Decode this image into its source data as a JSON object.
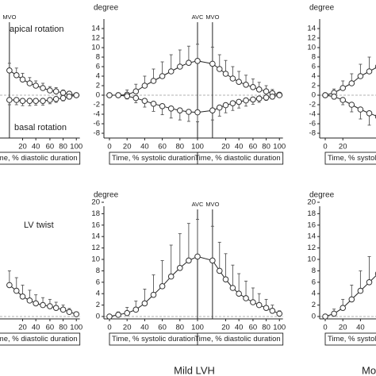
{
  "chart_data": [
    {
      "type": "line",
      "ylim": [
        -8,
        14
      ],
      "zero_line": true,
      "x": [
        117,
        125,
        132,
        140,
        147,
        155,
        163,
        170,
        178,
        185,
        193
      ],
      "xticks": [
        {
          "value": 132,
          "label": "20"
        },
        {
          "value": 147,
          "label": "40"
        },
        {
          "value": 163,
          "label": "60"
        },
        {
          "value": 178,
          "label": "80"
        },
        {
          "value": 193,
          "label": "100"
        }
      ],
      "xlabel_diastolic": "Time, % diastolic duration",
      "annotations": [
        {
          "text": "MVO",
          "x": 117
        }
      ],
      "texts": [
        "apical rotation",
        "basal rotation"
      ],
      "series": [
        {
          "error_side": "up",
          "values": [
            5.2,
            4.2,
            3.3,
            2.5,
            2,
            1.5,
            1,
            0.8,
            0.5,
            0.3,
            0
          ],
          "errors": [
            1.5,
            1.5,
            1.3,
            1.2,
            1,
            1,
            0.8,
            0.8,
            0.6,
            0.5,
            0.3
          ]
        },
        {
          "error_side": "down",
          "values": [
            -1,
            -1,
            -1.2,
            -1.2,
            -1.2,
            -1.2,
            -1,
            -0.8,
            -0.6,
            -0.3,
            0
          ],
          "errors": [
            1,
            1,
            1,
            1,
            0.9,
            0.9,
            0.8,
            0.7,
            0.6,
            0.5,
            0.3
          ]
        }
      ]
    },
    {
      "type": "line",
      "y_label": "degree",
      "ylim": [
        -8,
        14
      ],
      "yticks": [
        -8,
        -6,
        -4,
        -2,
        0,
        2,
        4,
        6,
        8,
        10,
        12,
        14
      ],
      "zero_line": true,
      "x": [
        0,
        10,
        20,
        30,
        40,
        50,
        60,
        70,
        80,
        90,
        100,
        117,
        125,
        132,
        140,
        147,
        155,
        163,
        170,
        178,
        185,
        193
      ],
      "xticks": [
        0,
        20,
        40,
        60,
        80,
        100,
        {
          "value": 132,
          "label": "20"
        },
        {
          "value": 147,
          "label": "40"
        },
        {
          "value": 163,
          "label": "60"
        },
        {
          "value": 178,
          "label": "80"
        },
        {
          "value": 193,
          "label": "100"
        }
      ],
      "xlabel_systolic": "Time, % systolic duration",
      "xlabel_diastolic": "Time, % diastolic duration",
      "annotations": [
        {
          "text": "AVC",
          "x": 100
        },
        {
          "text": "MVO",
          "x": 117
        }
      ],
      "series": [
        {
          "error_side": "up",
          "values": [
            0,
            0,
            0.1,
            0.8,
            2,
            3,
            4,
            5,
            6,
            6.8,
            7.2,
            6.6,
            5.5,
            4.5,
            3.5,
            2.8,
            2.2,
            1.7,
            1.2,
            0.8,
            0.4,
            0.1
          ],
          "errors": [
            0.3,
            0.5,
            1,
            1.5,
            2,
            2.5,
            3,
            3.5,
            3.5,
            3.5,
            3.5,
            3.5,
            3,
            2.8,
            2.5,
            2.2,
            2,
            1.7,
            1.5,
            1.2,
            0.8,
            0.5
          ]
        },
        {
          "error_side": "down",
          "values": [
            0,
            0,
            -0.2,
            -0.6,
            -1.2,
            -1.8,
            -2.3,
            -2.8,
            -3.2,
            -3.5,
            -3.6,
            -3.2,
            -2.6,
            -2.1,
            -1.7,
            -1.4,
            -1.1,
            -0.9,
            -0.7,
            -0.5,
            -0.3,
            0
          ],
          "errors": [
            0.2,
            0.3,
            0.6,
            1,
            1.3,
            1.6,
            1.8,
            2,
            2,
            2,
            2,
            2,
            1.8,
            1.6,
            1.5,
            1.3,
            1.2,
            1,
            0.8,
            0.6,
            0.5,
            0.3
          ]
        }
      ]
    },
    {
      "type": "line",
      "y_label": "degree",
      "ylim": [
        -8,
        14
      ],
      "yticks": [
        -8,
        -6,
        -4,
        -2,
        0,
        2,
        4,
        6,
        8,
        10,
        12,
        14
      ],
      "zero_line": true,
      "x": [
        0,
        10,
        20,
        30,
        40,
        50,
        60
      ],
      "xticks": [
        0,
        20
      ],
      "xlabel_systolic": "Time, % systolic duration",
      "series": [
        {
          "error_side": "up",
          "values": [
            0,
            0.5,
            1.5,
            2.5,
            4,
            5,
            6
          ],
          "errors": [
            0.3,
            0.8,
            1.5,
            2,
            2.5,
            3,
            3
          ]
        },
        {
          "error_side": "down",
          "values": [
            0,
            -0.3,
            -1,
            -2,
            -3,
            -3.8,
            -4.5
          ],
          "errors": [
            0.3,
            0.5,
            1,
            1.5,
            2,
            2.5,
            2.5
          ]
        }
      ]
    },
    {
      "type": "line",
      "ylim": [
        0,
        20
      ],
      "zero_line": true,
      "x": [
        117,
        125,
        132,
        140,
        147,
        155,
        163,
        170,
        178,
        185,
        193
      ],
      "xticks": [
        {
          "value": 132,
          "label": "20"
        },
        {
          "value": 147,
          "label": "40"
        },
        {
          "value": 163,
          "label": "60"
        },
        {
          "value": 178,
          "label": "80"
        },
        {
          "value": 193,
          "label": "100"
        }
      ],
      "xlabel_diastolic": "Time, % diastolic duration",
      "texts": [
        "LV twist"
      ],
      "series": [
        {
          "error_side": "up",
          "values": [
            5.5,
            4.5,
            3.5,
            2.8,
            2.3,
            2,
            1.8,
            1.5,
            1.2,
            0.8,
            0.4
          ],
          "errors": [
            2.5,
            2.3,
            2,
            1.8,
            1.5,
            1.3,
            1.2,
            1,
            0.8,
            0.6,
            0.3
          ]
        }
      ]
    },
    {
      "type": "line",
      "y_label": "degree",
      "ylim": [
        0,
        20
      ],
      "yticks": [
        0,
        2,
        4,
        6,
        8,
        10,
        12,
        14,
        16,
        18,
        20
      ],
      "zero_line": true,
      "x": [
        0,
        10,
        20,
        30,
        40,
        50,
        60,
        70,
        80,
        90,
        100,
        117,
        125,
        132,
        140,
        147,
        155,
        163,
        170,
        178,
        185,
        193
      ],
      "xticks": [
        0,
        20,
        40,
        60,
        80,
        100,
        {
          "value": 132,
          "label": "20"
        },
        {
          "value": 147,
          "label": "40"
        },
        {
          "value": 163,
          "label": "60"
        },
        {
          "value": 178,
          "label": "80"
        },
        {
          "value": 193,
          "label": "100"
        }
      ],
      "xlabel_systolic": "Time, % systolic duration",
      "xlabel_diastolic": "Time, % diastolic duration",
      "annotations": [
        {
          "text": "AVC",
          "x": 100
        },
        {
          "text": "MVO",
          "x": 117
        }
      ],
      "group": "Mild LVH",
      "series": [
        {
          "error_side": "up",
          "values": [
            0,
            0.3,
            0.6,
            1.2,
            2.3,
            3.8,
            5.3,
            7,
            8.5,
            9.8,
            10.5,
            9.8,
            8,
            6.5,
            5,
            4,
            3.2,
            2.5,
            2,
            1.5,
            1,
            0.5
          ],
          "errors": [
            0.3,
            0.5,
            1,
            1.5,
            2.5,
            3.5,
            4.5,
            5.5,
            6,
            6.5,
            6.5,
            6,
            5,
            4.5,
            4,
            3.5,
            3,
            2.5,
            2,
            1.5,
            1,
            0.5
          ]
        }
      ]
    },
    {
      "type": "line",
      "y_label": "degree",
      "ylim": [
        0,
        20
      ],
      "yticks": [
        0,
        2,
        4,
        6,
        8,
        10,
        12,
        14,
        16,
        18,
        20
      ],
      "zero_line": true,
      "x": [
        0,
        10,
        20,
        30,
        40,
        50,
        60
      ],
      "xticks": [
        0,
        20,
        40
      ],
      "xlabel_systolic": "Time, % systolic duration",
      "group": "Mo",
      "series": [
        {
          "error_side": "up",
          "values": [
            0,
            0.5,
            1.5,
            3,
            4.5,
            6,
            7.5
          ],
          "errors": [
            0.3,
            0.8,
            1.5,
            2.5,
            3.5,
            4.5,
            5
          ]
        }
      ]
    }
  ]
}
